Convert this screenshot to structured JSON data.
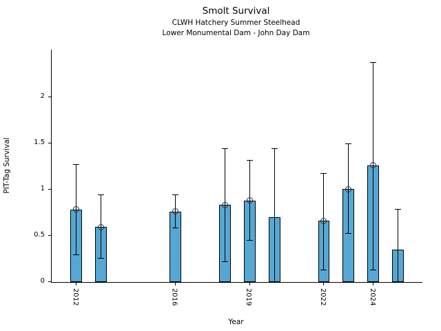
{
  "chart_data": {
    "type": "bar",
    "title": "Smolt Survival",
    "subtitle1": "CLWH Hatchery Summer Steelhead",
    "subtitle2": "Lower Monumental Dam - John Day Dam",
    "xlabel": "Year",
    "ylabel": "PIT-Tag Survival",
    "xlim": [
      2011.0,
      2025.9
    ],
    "ylim": [
      0,
      2.51
    ],
    "yticks": [
      {
        "value": 0,
        "label": "0"
      },
      {
        "value": 0.5,
        "label": "0.5"
      },
      {
        "value": 1,
        "label": "1"
      },
      {
        "value": 1.5,
        "label": "1.5"
      },
      {
        "value": 2,
        "label": "2"
      }
    ],
    "xticks": [
      {
        "value": 2012,
        "label": "2012"
      },
      {
        "value": 2016,
        "label": "2016"
      },
      {
        "value": 2019,
        "label": "2019"
      },
      {
        "value": 2022,
        "label": "2022"
      },
      {
        "value": 2024,
        "label": "2024"
      }
    ],
    "grid": false,
    "legend": null,
    "bar_width_years": 0.47,
    "colors": {
      "bar_fill": "#57A7D4",
      "bar_edge": "#000000",
      "error": "#000000",
      "marker_edge": "#2e2e2e",
      "axis": "#000000",
      "text": "#000000",
      "background": "#FFFFFF"
    },
    "series": [
      {
        "name": "PIT-Tag Survival",
        "points": [
          {
            "year": 2012,
            "value": 0.78,
            "ci_low": 0.29,
            "ci_high": 1.27,
            "marker": true
          },
          {
            "year": 2013,
            "value": 0.59,
            "ci_low": 0.25,
            "ci_high": 0.94,
            "marker": true
          },
          {
            "year": 2016,
            "value": 0.76,
            "ci_low": 0.58,
            "ci_high": 0.94,
            "marker": true
          },
          {
            "year": 2018,
            "value": 0.83,
            "ci_low": 0.22,
            "ci_high": 1.44,
            "marker": true
          },
          {
            "year": 2019,
            "value": 0.88,
            "ci_low": 0.45,
            "ci_high": 1.31,
            "marker": true
          },
          {
            "year": 2020,
            "value": 0.7,
            "ci_low": 0.0,
            "ci_high": 1.44,
            "marker": false
          },
          {
            "year": 2022,
            "value": 0.66,
            "ci_low": 0.13,
            "ci_high": 1.17,
            "marker": true
          },
          {
            "year": 2023,
            "value": 1.0,
            "ci_low": 0.52,
            "ci_high": 1.49,
            "marker": true
          },
          {
            "year": 2024,
            "value": 1.26,
            "ci_low": 0.13,
            "ci_high": 2.37,
            "marker": true
          },
          {
            "year": 2025,
            "value": 0.35,
            "ci_low": 0.0,
            "ci_high": 0.78,
            "marker": false
          }
        ]
      }
    ]
  }
}
